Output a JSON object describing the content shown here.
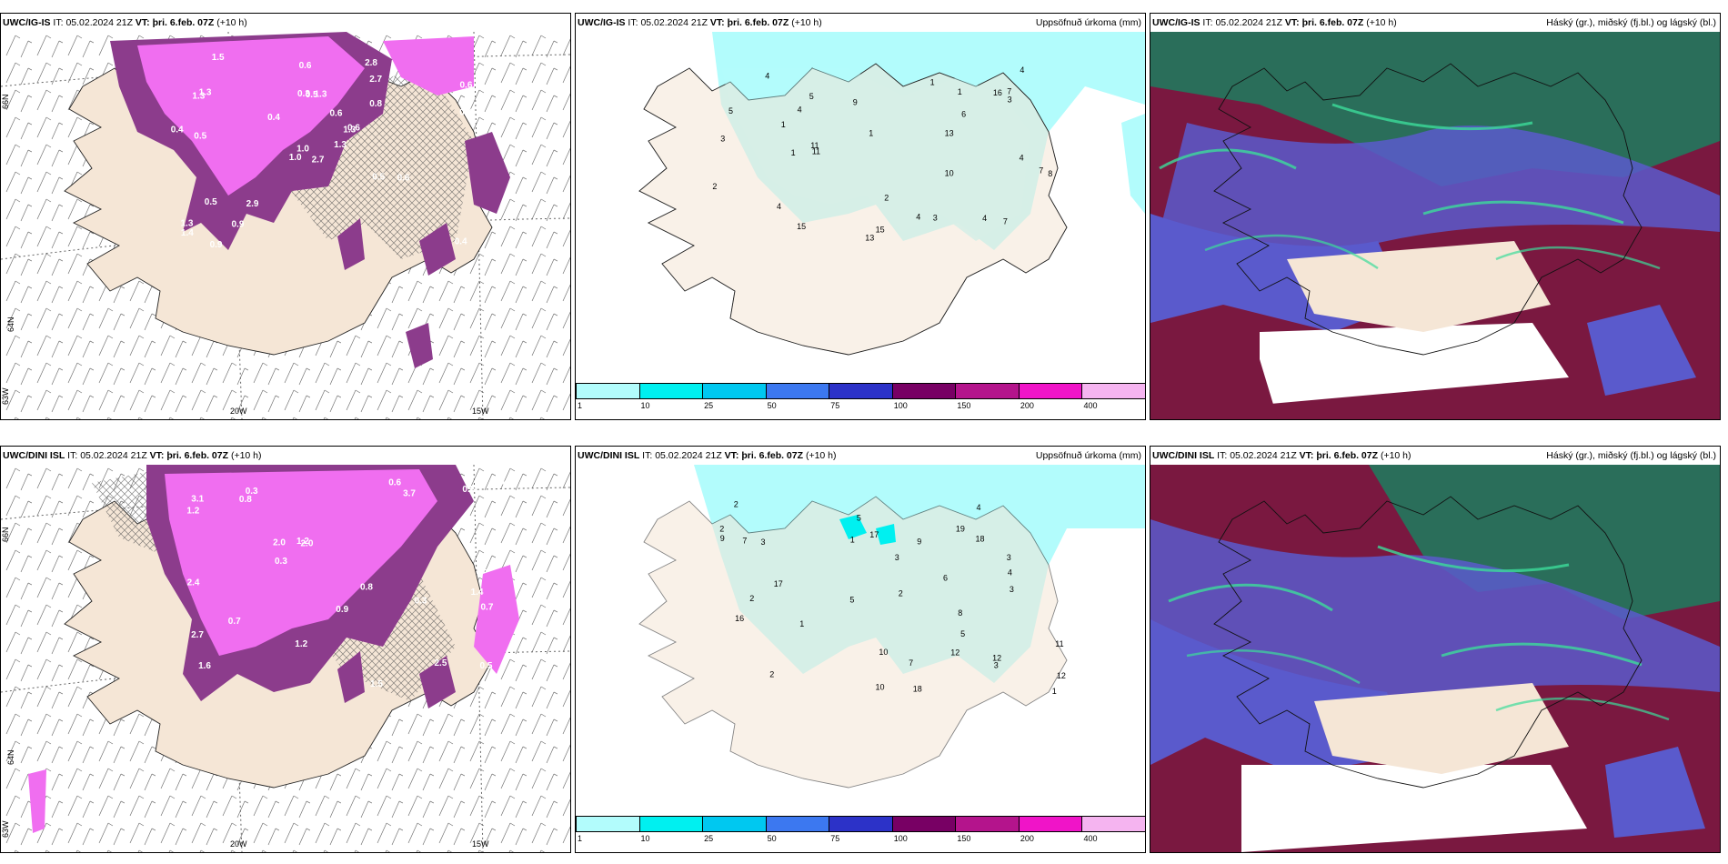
{
  "rows": [
    {
      "model": "UWC/IG-IS",
      "init_label": "IT:",
      "init": "05.02.2024 21Z",
      "valid_label": "VT:",
      "valid": "þri. 6.feb. 07Z",
      "lead": "(+10 h)",
      "wind_panel": {
        "lat_labels": [
          "66N",
          "64N",
          "63W"
        ],
        "lon_labels": [
          "20W",
          "15W"
        ],
        "values": [
          "2.7",
          "1.3",
          "1.0",
          "1.3",
          "1.3",
          "2.9",
          "2.8",
          "1.3",
          "2.7",
          "1.3",
          "1.5",
          "0.4",
          "0.5",
          "0.6",
          "1.0",
          "0.8",
          "0.9",
          "0.3",
          "0.6",
          "0.5",
          "0.4",
          "1.4",
          "0.9",
          "0.5",
          "0.6",
          "0.6",
          "1.3",
          "0.6",
          "0.4",
          "0.5",
          "0.6"
        ]
      },
      "precip_panel": {
        "title": "Uppsöfnuð úrkoma (mm)",
        "values": [
          "5",
          "4",
          "13",
          "15",
          "16",
          "13",
          "10",
          "11",
          "7",
          "8",
          "7",
          "5",
          "6",
          "4",
          "3",
          "15",
          "11",
          "9",
          "7",
          "4",
          "4",
          "4",
          "1",
          "2",
          "1",
          "1",
          "3",
          "1",
          "4",
          "1",
          "2",
          "3",
          "4"
        ]
      },
      "cloud_panel": {
        "title": "Háský (gr.), miðský (fj.bl.) og lágský (bl.)"
      }
    },
    {
      "model": "UWC/DINI ISL",
      "init_label": "IT:",
      "init": "05.02.2024 21Z",
      "valid_label": "VT:",
      "valid": "þri. 6.feb. 07Z",
      "lead": "(+10 h)",
      "wind_panel": {
        "lat_labels": [
          "66N",
          "64N",
          "63W"
        ],
        "lon_labels": [
          "20W",
          "15W"
        ],
        "values": [
          "0.3",
          "1.4",
          "1.6",
          "0.3",
          "2.0",
          "2.5",
          "2.7",
          "3.7",
          "2.0",
          "1.5",
          "1.2",
          "2.4",
          "3.1",
          "0.5",
          "1.2",
          "1.3",
          "0.9",
          "0.8",
          "1.2",
          "0.7",
          "1.0",
          "0.5",
          "0.3",
          "0.7",
          "0.6",
          "0.8"
        ]
      },
      "precip_panel": {
        "title": "Uppsöfnuð úrkoma (mm)",
        "values": [
          "3",
          "3",
          "2",
          "3",
          "10",
          "17",
          "18",
          "19",
          "17",
          "16",
          "12",
          "9",
          "8",
          "7",
          "12",
          "18",
          "11",
          "12",
          "7",
          "5",
          "9",
          "10",
          "6",
          "5",
          "4",
          "3",
          "2",
          "1",
          "2",
          "5",
          "2",
          "2",
          "4",
          "3",
          "1",
          "1"
        ]
      },
      "cloud_panel": {
        "title": "Háský (gr.), miðský (fj.bl.) og lágský (bl.)"
      }
    }
  ],
  "colorbar": {
    "ticks": [
      "1",
      "10",
      "25",
      "50",
      "75",
      "100",
      "150",
      "200",
      "400"
    ],
    "colors": [
      "#b2fcfc",
      "#00f0f0",
      "#00c8f0",
      "#3c78f0",
      "#2c32c8",
      "#780064",
      "#b4148c",
      "#f014c8",
      "#f5b4f0"
    ]
  },
  "colors": {
    "land": "#f5e6d6",
    "ocean": "#ffffff",
    "precip_light": "#b2fcfc",
    "magenta_dark": "#8c3c8c",
    "magenta_light": "#f06ef0",
    "cloud_high": "#2a6e5a",
    "cloud_mid": "#7a1840",
    "cloud_low": "#5a5acc"
  }
}
